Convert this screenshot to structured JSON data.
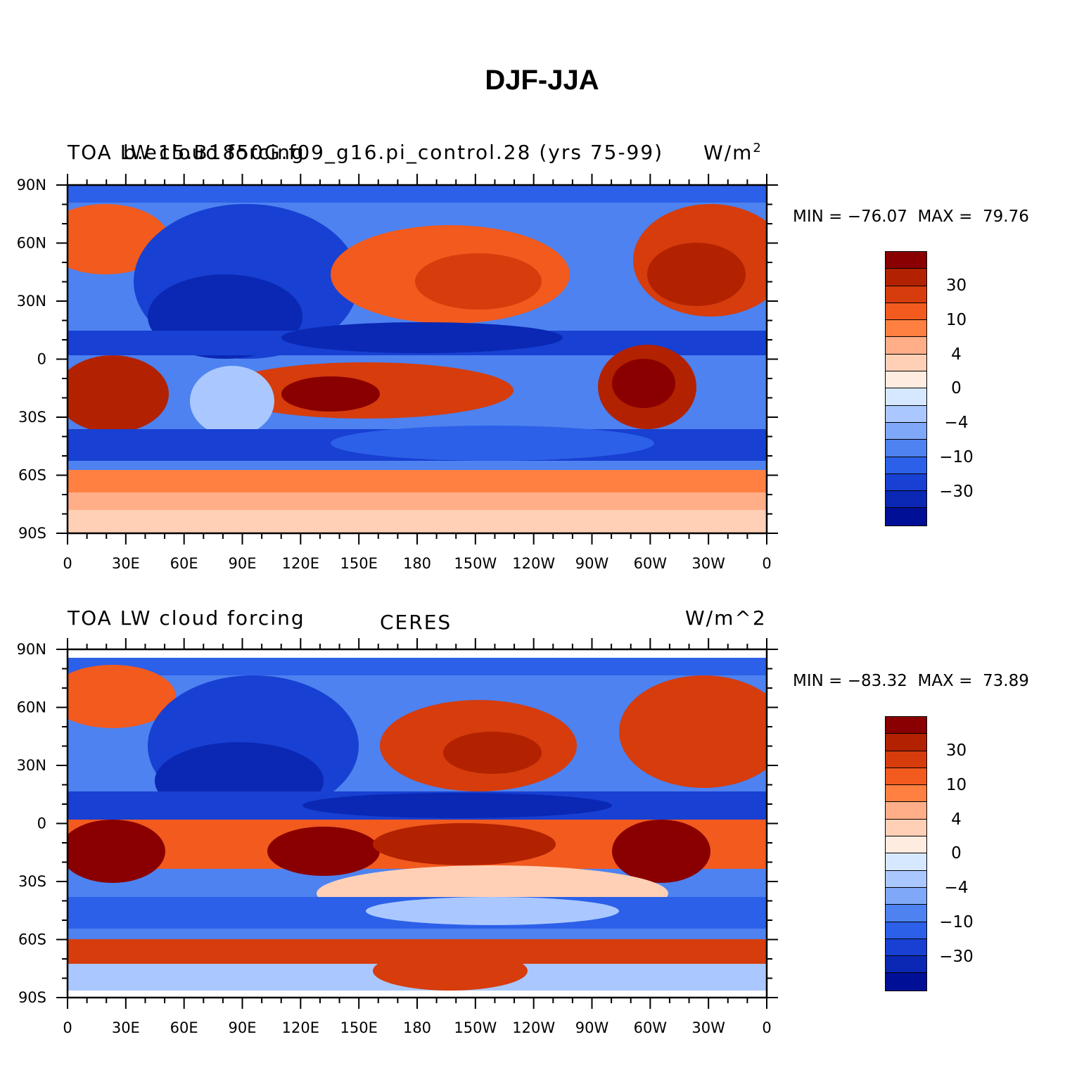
{
  "page_title": "DJF-JJA",
  "panels": [
    {
      "left_title": "TOA LW cloud forcing",
      "center_title": "b.e15.B1850G.f09_g16.pi_control.28 (yrs 75-99)",
      "units": "W/m",
      "units_superscript": "2",
      "min_label": "MIN = −76.07",
      "max_label": "MAX =  79.76"
    },
    {
      "left_title": "TOA LW cloud forcing",
      "center_title": "CERES",
      "units": "W/m^2",
      "units_superscript": "",
      "min_label": "MIN = −83.32",
      "max_label": "MAX =  73.89"
    }
  ],
  "lat_labels": [
    "90N",
    "60N",
    "30N",
    "0",
    "30S",
    "60S",
    "90S"
  ],
  "lon_labels": [
    "0",
    "30E",
    "60E",
    "90E",
    "120E",
    "150E",
    "180",
    "150W",
    "120W",
    "90W",
    "60W",
    "30W",
    "0"
  ],
  "colorbar": {
    "colors": [
      "#8a0000",
      "#b22200",
      "#d63c0c",
      "#f25a1e",
      "#ff8040",
      "#ffae88",
      "#ffd0b6",
      "#ffece0",
      "#d6e8ff",
      "#aac8ff",
      "#80a8f8",
      "#4d82f0",
      "#2c60e8",
      "#1840d2",
      "#0a28b4",
      "#001096"
    ],
    "labels": [
      "30",
      "10",
      "4",
      "0",
      "−4",
      "−10",
      "−30"
    ]
  }
}
